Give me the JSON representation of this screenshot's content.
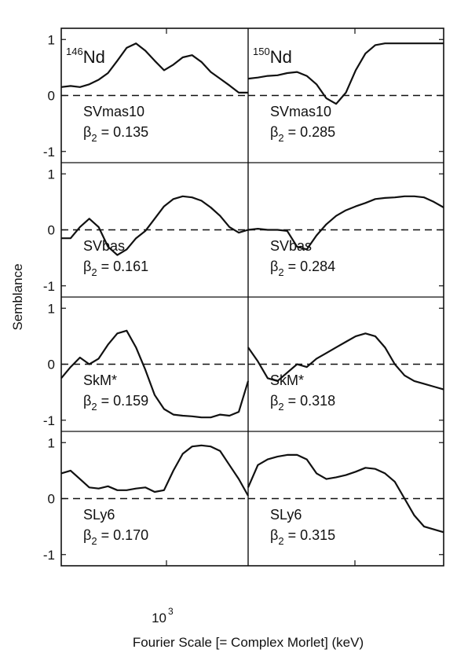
{
  "chart_data": {
    "type": "line",
    "ylabel": "Semblance",
    "xlabel": "Fourier Scale [= Complex Morlet] (keV)",
    "x_tick_label": "10",
    "x_tick_exponent": "3",
    "xscale": "log",
    "ylim": [
      -1.2,
      1.2
    ],
    "y_ticks": [
      "1",
      "0",
      "-1"
    ],
    "columns": [
      {
        "nucleus_mass": "146",
        "nucleus_symbol": "Nd"
      },
      {
        "nucleus_mass": "150",
        "nucleus_symbol": "Nd"
      }
    ],
    "panels": [
      {
        "row": 0,
        "col": 0,
        "model": "SVmas10",
        "beta_symbol": "β",
        "beta_sub": "2",
        "beta_text": " = 0.135",
        "x": [
          0,
          0.05,
          0.1,
          0.15,
          0.2,
          0.25,
          0.3,
          0.35,
          0.4,
          0.45,
          0.5,
          0.55,
          0.6,
          0.65,
          0.7,
          0.75,
          0.8,
          0.85,
          0.9,
          0.95,
          1
        ],
        "y": [
          0.15,
          0.17,
          0.15,
          0.2,
          0.28,
          0.4,
          0.62,
          0.85,
          0.93,
          0.8,
          0.62,
          0.45,
          0.55,
          0.68,
          0.72,
          0.6,
          0.42,
          0.3,
          0.18,
          0.05,
          0.05
        ]
      },
      {
        "row": 0,
        "col": 1,
        "model": "SVmas10",
        "beta_symbol": "β",
        "beta_sub": "2",
        "beta_text": " = 0.285",
        "x": [
          0,
          0.05,
          0.1,
          0.15,
          0.2,
          0.25,
          0.3,
          0.35,
          0.4,
          0.45,
          0.5,
          0.55,
          0.6,
          0.65,
          0.7,
          0.75,
          0.8,
          0.85,
          0.9,
          0.95,
          1
        ],
        "y": [
          0.3,
          0.32,
          0.35,
          0.36,
          0.4,
          0.42,
          0.35,
          0.2,
          -0.05,
          -0.15,
          0.05,
          0.45,
          0.75,
          0.9,
          0.93,
          0.93,
          0.93,
          0.93,
          0.93,
          0.93,
          0.93
        ]
      },
      {
        "row": 1,
        "col": 0,
        "model": "SVbas",
        "beta_symbol": "β",
        "beta_sub": "2",
        "beta_text": " = 0.161",
        "x": [
          0,
          0.05,
          0.1,
          0.15,
          0.2,
          0.25,
          0.3,
          0.35,
          0.4,
          0.45,
          0.5,
          0.55,
          0.6,
          0.65,
          0.7,
          0.75,
          0.8,
          0.85,
          0.9,
          0.95,
          1
        ],
        "y": [
          -0.15,
          -0.15,
          0.05,
          0.2,
          0.05,
          -0.3,
          -0.45,
          -0.35,
          -0.15,
          -0.02,
          0.2,
          0.42,
          0.55,
          0.6,
          0.58,
          0.52,
          0.4,
          0.25,
          0.05,
          -0.05,
          0.0
        ]
      },
      {
        "row": 1,
        "col": 1,
        "model": "SVbas",
        "beta_symbol": "β",
        "beta_sub": "2",
        "beta_text": " = 0.284",
        "x": [
          0,
          0.05,
          0.1,
          0.15,
          0.2,
          0.25,
          0.3,
          0.35,
          0.4,
          0.45,
          0.5,
          0.55,
          0.6,
          0.65,
          0.7,
          0.75,
          0.8,
          0.85,
          0.9,
          0.95,
          1
        ],
        "y": [
          0.0,
          0.02,
          0.0,
          0.0,
          -0.02,
          -0.3,
          -0.35,
          -0.1,
          0.1,
          0.25,
          0.35,
          0.42,
          0.48,
          0.55,
          0.57,
          0.58,
          0.6,
          0.6,
          0.58,
          0.5,
          0.4
        ]
      },
      {
        "row": 2,
        "col": 0,
        "model": "SkM*",
        "beta_symbol": "β",
        "beta_sub": "2",
        "beta_text": " = 0.159",
        "x": [
          0,
          0.05,
          0.1,
          0.15,
          0.2,
          0.25,
          0.3,
          0.35,
          0.4,
          0.45,
          0.5,
          0.55,
          0.6,
          0.65,
          0.7,
          0.75,
          0.8,
          0.85,
          0.9,
          0.95,
          1
        ],
        "y": [
          -0.25,
          -0.05,
          0.12,
          0.0,
          0.1,
          0.35,
          0.55,
          0.6,
          0.3,
          -0.1,
          -0.55,
          -0.8,
          -0.9,
          -0.92,
          -0.93,
          -0.95,
          -0.95,
          -0.9,
          -0.92,
          -0.85,
          -0.3
        ]
      },
      {
        "row": 2,
        "col": 1,
        "model": "SkM*",
        "beta_symbol": "β",
        "beta_sub": "2",
        "beta_text": " = 0.318",
        "x": [
          0,
          0.05,
          0.1,
          0.15,
          0.2,
          0.25,
          0.3,
          0.35,
          0.4,
          0.45,
          0.5,
          0.55,
          0.6,
          0.65,
          0.7,
          0.75,
          0.8,
          0.85,
          0.9,
          0.95,
          1
        ],
        "y": [
          0.3,
          0.05,
          -0.25,
          -0.3,
          -0.15,
          0.0,
          -0.05,
          0.1,
          0.2,
          0.3,
          0.4,
          0.5,
          0.55,
          0.5,
          0.3,
          0.0,
          -0.2,
          -0.3,
          -0.35,
          -0.4,
          -0.45
        ]
      },
      {
        "row": 3,
        "col": 0,
        "model": "SLy6",
        "beta_symbol": "β",
        "beta_sub": "2",
        "beta_text": " = 0.170",
        "x": [
          0,
          0.05,
          0.1,
          0.15,
          0.2,
          0.25,
          0.3,
          0.35,
          0.4,
          0.45,
          0.5,
          0.55,
          0.6,
          0.65,
          0.7,
          0.75,
          0.8,
          0.85,
          0.9,
          0.95,
          1
        ],
        "y": [
          0.45,
          0.5,
          0.35,
          0.2,
          0.18,
          0.22,
          0.15,
          0.15,
          0.18,
          0.2,
          0.12,
          0.15,
          0.5,
          0.8,
          0.93,
          0.95,
          0.93,
          0.85,
          0.6,
          0.35,
          0.05
        ]
      },
      {
        "row": 3,
        "col": 1,
        "model": "SLy6",
        "beta_symbol": "β",
        "beta_sub": "2",
        "beta_text": " = 0.315",
        "x": [
          0,
          0.05,
          0.1,
          0.15,
          0.2,
          0.25,
          0.3,
          0.35,
          0.4,
          0.45,
          0.5,
          0.55,
          0.6,
          0.65,
          0.7,
          0.75,
          0.8,
          0.85,
          0.9,
          0.95,
          1
        ],
        "y": [
          0.2,
          0.6,
          0.7,
          0.75,
          0.78,
          0.78,
          0.7,
          0.45,
          0.35,
          0.38,
          0.42,
          0.48,
          0.55,
          0.53,
          0.45,
          0.3,
          0.0,
          -0.3,
          -0.5,
          -0.55,
          -0.6
        ]
      }
    ]
  }
}
